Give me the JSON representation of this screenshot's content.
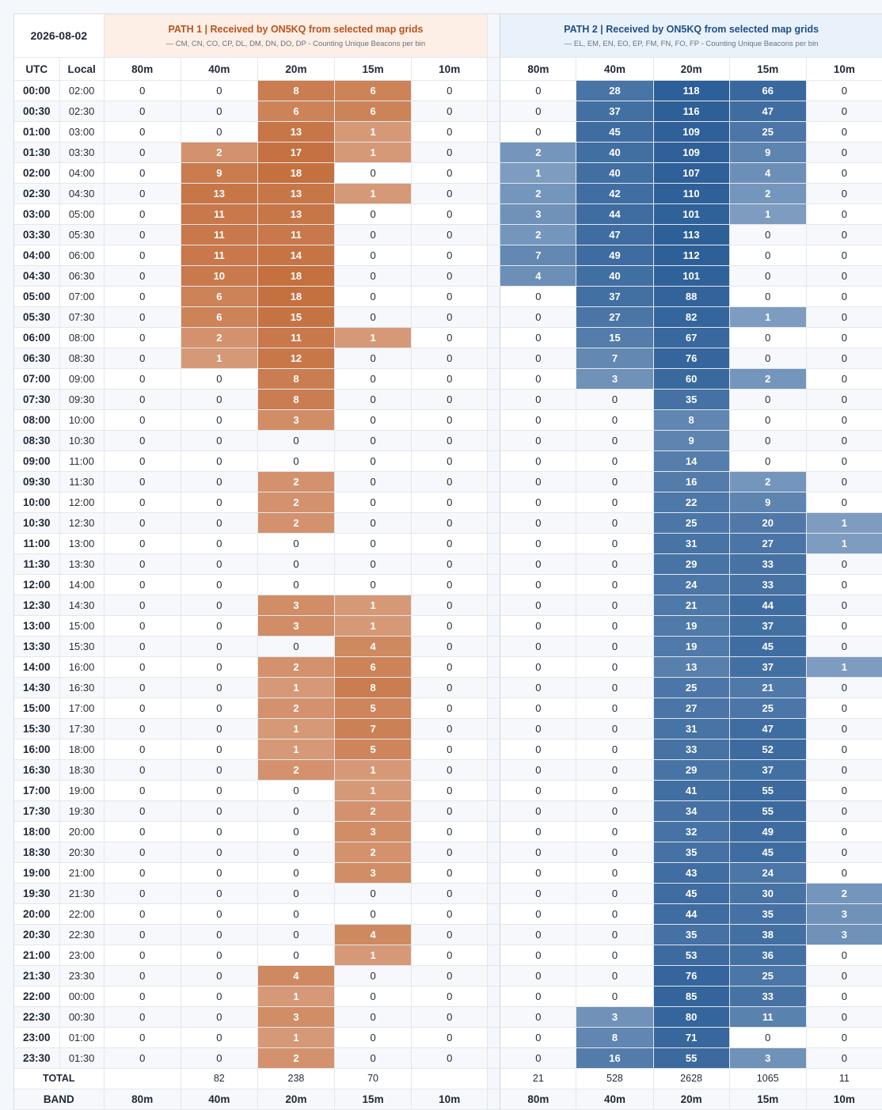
{
  "date": "2026-08-02",
  "path1": {
    "title": "PATH 1 | Received by ON5KQ from selected map grids",
    "subtitle": "— CM, CN, CO, CP, DL, DM, DN, DO, DP - Counting Unique Beacons per bin",
    "accent": "#c5703f"
  },
  "path2": {
    "title": "PATH 2 | Received by ON5KQ from selected map grids",
    "subtitle": "— EL, EM, EN, EO, EP, FM, FN, FO, FP - Counting Unique Beacons per bin",
    "accent": "#2d5f98"
  },
  "headers": {
    "utc": "UTC",
    "local": "Local",
    "bands": [
      "80m",
      "40m",
      "20m",
      "15m",
      "10m"
    ]
  },
  "rows": [
    {
      "utc": "00:00",
      "local": "02:00",
      "p1": [
        0,
        0,
        8,
        6,
        0
      ],
      "p2": [
        0,
        28,
        118,
        66,
        0
      ]
    },
    {
      "utc": "00:30",
      "local": "02:30",
      "p1": [
        0,
        0,
        6,
        6,
        0
      ],
      "p2": [
        0,
        37,
        116,
        47,
        0
      ]
    },
    {
      "utc": "01:00",
      "local": "03:00",
      "p1": [
        0,
        0,
        13,
        1,
        0
      ],
      "p2": [
        0,
        45,
        109,
        25,
        0
      ]
    },
    {
      "utc": "01:30",
      "local": "03:30",
      "p1": [
        0,
        2,
        17,
        1,
        0
      ],
      "p2": [
        2,
        40,
        109,
        9,
        0
      ]
    },
    {
      "utc": "02:00",
      "local": "04:00",
      "p1": [
        0,
        9,
        18,
        0,
        0
      ],
      "p2": [
        1,
        40,
        107,
        4,
        0
      ]
    },
    {
      "utc": "02:30",
      "local": "04:30",
      "p1": [
        0,
        13,
        13,
        1,
        0
      ],
      "p2": [
        2,
        42,
        110,
        2,
        0
      ]
    },
    {
      "utc": "03:00",
      "local": "05:00",
      "p1": [
        0,
        11,
        13,
        0,
        0
      ],
      "p2": [
        3,
        44,
        101,
        1,
        0
      ]
    },
    {
      "utc": "03:30",
      "local": "05:30",
      "p1": [
        0,
        11,
        11,
        0,
        0
      ],
      "p2": [
        2,
        47,
        113,
        0,
        0
      ]
    },
    {
      "utc": "04:00",
      "local": "06:00",
      "p1": [
        0,
        11,
        14,
        0,
        0
      ],
      "p2": [
        7,
        49,
        112,
        0,
        0
      ]
    },
    {
      "utc": "04:30",
      "local": "06:30",
      "p1": [
        0,
        10,
        18,
        0,
        0
      ],
      "p2": [
        4,
        40,
        101,
        0,
        0
      ]
    },
    {
      "utc": "05:00",
      "local": "07:00",
      "p1": [
        0,
        6,
        18,
        0,
        0
      ],
      "p2": [
        0,
        37,
        88,
        0,
        0
      ]
    },
    {
      "utc": "05:30",
      "local": "07:30",
      "p1": [
        0,
        6,
        15,
        0,
        0
      ],
      "p2": [
        0,
        27,
        82,
        1,
        0
      ]
    },
    {
      "utc": "06:00",
      "local": "08:00",
      "p1": [
        0,
        2,
        11,
        1,
        0
      ],
      "p2": [
        0,
        15,
        67,
        0,
        0
      ]
    },
    {
      "utc": "06:30",
      "local": "08:30",
      "p1": [
        0,
        1,
        12,
        0,
        0
      ],
      "p2": [
        0,
        7,
        76,
        0,
        0
      ]
    },
    {
      "utc": "07:00",
      "local": "09:00",
      "p1": [
        0,
        0,
        8,
        0,
        0
      ],
      "p2": [
        0,
        3,
        60,
        2,
        0
      ]
    },
    {
      "utc": "07:30",
      "local": "09:30",
      "p1": [
        0,
        0,
        8,
        0,
        0
      ],
      "p2": [
        0,
        0,
        35,
        0,
        0
      ]
    },
    {
      "utc": "08:00",
      "local": "10:00",
      "p1": [
        0,
        0,
        3,
        0,
        0
      ],
      "p2": [
        0,
        0,
        8,
        0,
        0
      ]
    },
    {
      "utc": "08:30",
      "local": "10:30",
      "p1": [
        0,
        0,
        0,
        0,
        0
      ],
      "p2": [
        0,
        0,
        9,
        0,
        0
      ]
    },
    {
      "utc": "09:00",
      "local": "11:00",
      "p1": [
        0,
        0,
        0,
        0,
        0
      ],
      "p2": [
        0,
        0,
        14,
        0,
        0
      ]
    },
    {
      "utc": "09:30",
      "local": "11:30",
      "p1": [
        0,
        0,
        2,
        0,
        0
      ],
      "p2": [
        0,
        0,
        16,
        2,
        0
      ]
    },
    {
      "utc": "10:00",
      "local": "12:00",
      "p1": [
        0,
        0,
        2,
        0,
        0
      ],
      "p2": [
        0,
        0,
        22,
        9,
        0
      ]
    },
    {
      "utc": "10:30",
      "local": "12:30",
      "p1": [
        0,
        0,
        2,
        0,
        0
      ],
      "p2": [
        0,
        0,
        25,
        20,
        1
      ]
    },
    {
      "utc": "11:00",
      "local": "13:00",
      "p1": [
        0,
        0,
        0,
        0,
        0
      ],
      "p2": [
        0,
        0,
        31,
        27,
        1
      ]
    },
    {
      "utc": "11:30",
      "local": "13:30",
      "p1": [
        0,
        0,
        0,
        0,
        0
      ],
      "p2": [
        0,
        0,
        29,
        33,
        0
      ]
    },
    {
      "utc": "12:00",
      "local": "14:00",
      "p1": [
        0,
        0,
        0,
        0,
        0
      ],
      "p2": [
        0,
        0,
        24,
        33,
        0
      ]
    },
    {
      "utc": "12:30",
      "local": "14:30",
      "p1": [
        0,
        0,
        3,
        1,
        0
      ],
      "p2": [
        0,
        0,
        21,
        44,
        0
      ]
    },
    {
      "utc": "13:00",
      "local": "15:00",
      "p1": [
        0,
        0,
        3,
        1,
        0
      ],
      "p2": [
        0,
        0,
        19,
        37,
        0
      ]
    },
    {
      "utc": "13:30",
      "local": "15:30",
      "p1": [
        0,
        0,
        0,
        4,
        0
      ],
      "p2": [
        0,
        0,
        19,
        45,
        0
      ]
    },
    {
      "utc": "14:00",
      "local": "16:00",
      "p1": [
        0,
        0,
        2,
        6,
        0
      ],
      "p2": [
        0,
        0,
        13,
        37,
        1
      ]
    },
    {
      "utc": "14:30",
      "local": "16:30",
      "p1": [
        0,
        0,
        1,
        8,
        0
      ],
      "p2": [
        0,
        0,
        25,
        21,
        0
      ]
    },
    {
      "utc": "15:00",
      "local": "17:00",
      "p1": [
        0,
        0,
        2,
        5,
        0
      ],
      "p2": [
        0,
        0,
        27,
        25,
        0
      ]
    },
    {
      "utc": "15:30",
      "local": "17:30",
      "p1": [
        0,
        0,
        1,
        7,
        0
      ],
      "p2": [
        0,
        0,
        31,
        47,
        0
      ]
    },
    {
      "utc": "16:00",
      "local": "18:00",
      "p1": [
        0,
        0,
        1,
        5,
        0
      ],
      "p2": [
        0,
        0,
        33,
        52,
        0
      ]
    },
    {
      "utc": "16:30",
      "local": "18:30",
      "p1": [
        0,
        0,
        2,
        1,
        0
      ],
      "p2": [
        0,
        0,
        29,
        37,
        0
      ]
    },
    {
      "utc": "17:00",
      "local": "19:00",
      "p1": [
        0,
        0,
        0,
        1,
        0
      ],
      "p2": [
        0,
        0,
        41,
        55,
        0
      ]
    },
    {
      "utc": "17:30",
      "local": "19:30",
      "p1": [
        0,
        0,
        0,
        2,
        0
      ],
      "p2": [
        0,
        0,
        34,
        55,
        0
      ]
    },
    {
      "utc": "18:00",
      "local": "20:00",
      "p1": [
        0,
        0,
        0,
        3,
        0
      ],
      "p2": [
        0,
        0,
        32,
        49,
        0
      ]
    },
    {
      "utc": "18:30",
      "local": "20:30",
      "p1": [
        0,
        0,
        0,
        2,
        0
      ],
      "p2": [
        0,
        0,
        35,
        45,
        0
      ]
    },
    {
      "utc": "19:00",
      "local": "21:00",
      "p1": [
        0,
        0,
        0,
        3,
        0
      ],
      "p2": [
        0,
        0,
        43,
        24,
        0
      ]
    },
    {
      "utc": "19:30",
      "local": "21:30",
      "p1": [
        0,
        0,
        0,
        0,
        0
      ],
      "p2": [
        0,
        0,
        45,
        30,
        2
      ]
    },
    {
      "utc": "20:00",
      "local": "22:00",
      "p1": [
        0,
        0,
        0,
        0,
        0
      ],
      "p2": [
        0,
        0,
        44,
        35,
        3
      ]
    },
    {
      "utc": "20:30",
      "local": "22:30",
      "p1": [
        0,
        0,
        0,
        4,
        0
      ],
      "p2": [
        0,
        0,
        35,
        38,
        3
      ]
    },
    {
      "utc": "21:00",
      "local": "23:00",
      "p1": [
        0,
        0,
        0,
        1,
        0
      ],
      "p2": [
        0,
        0,
        53,
        36,
        0
      ]
    },
    {
      "utc": "21:30",
      "local": "23:30",
      "p1": [
        0,
        0,
        4,
        0,
        0
      ],
      "p2": [
        0,
        0,
        76,
        25,
        0
      ]
    },
    {
      "utc": "22:00",
      "local": "00:00",
      "p1": [
        0,
        0,
        1,
        0,
        0
      ],
      "p2": [
        0,
        0,
        85,
        33,
        0
      ]
    },
    {
      "utc": "22:30",
      "local": "00:30",
      "p1": [
        0,
        0,
        3,
        0,
        0
      ],
      "p2": [
        0,
        3,
        80,
        11,
        0
      ]
    },
    {
      "utc": "23:00",
      "local": "01:00",
      "p1": [
        0,
        0,
        1,
        0,
        0
      ],
      "p2": [
        0,
        8,
        71,
        0,
        0
      ]
    },
    {
      "utc": "23:30",
      "local": "01:30",
      "p1": [
        0,
        0,
        2,
        0,
        0
      ],
      "p2": [
        0,
        16,
        55,
        3,
        0
      ]
    }
  ],
  "totals": {
    "label": "TOTAL",
    "p1": [
      "",
      "82",
      "238",
      "70",
      ""
    ],
    "p2": [
      "21",
      "528",
      "2628",
      "1065",
      "11"
    ]
  },
  "band_footer": {
    "label": "BAND",
    "bands": [
      "80m",
      "40m",
      "20m",
      "15m",
      "10m"
    ]
  }
}
